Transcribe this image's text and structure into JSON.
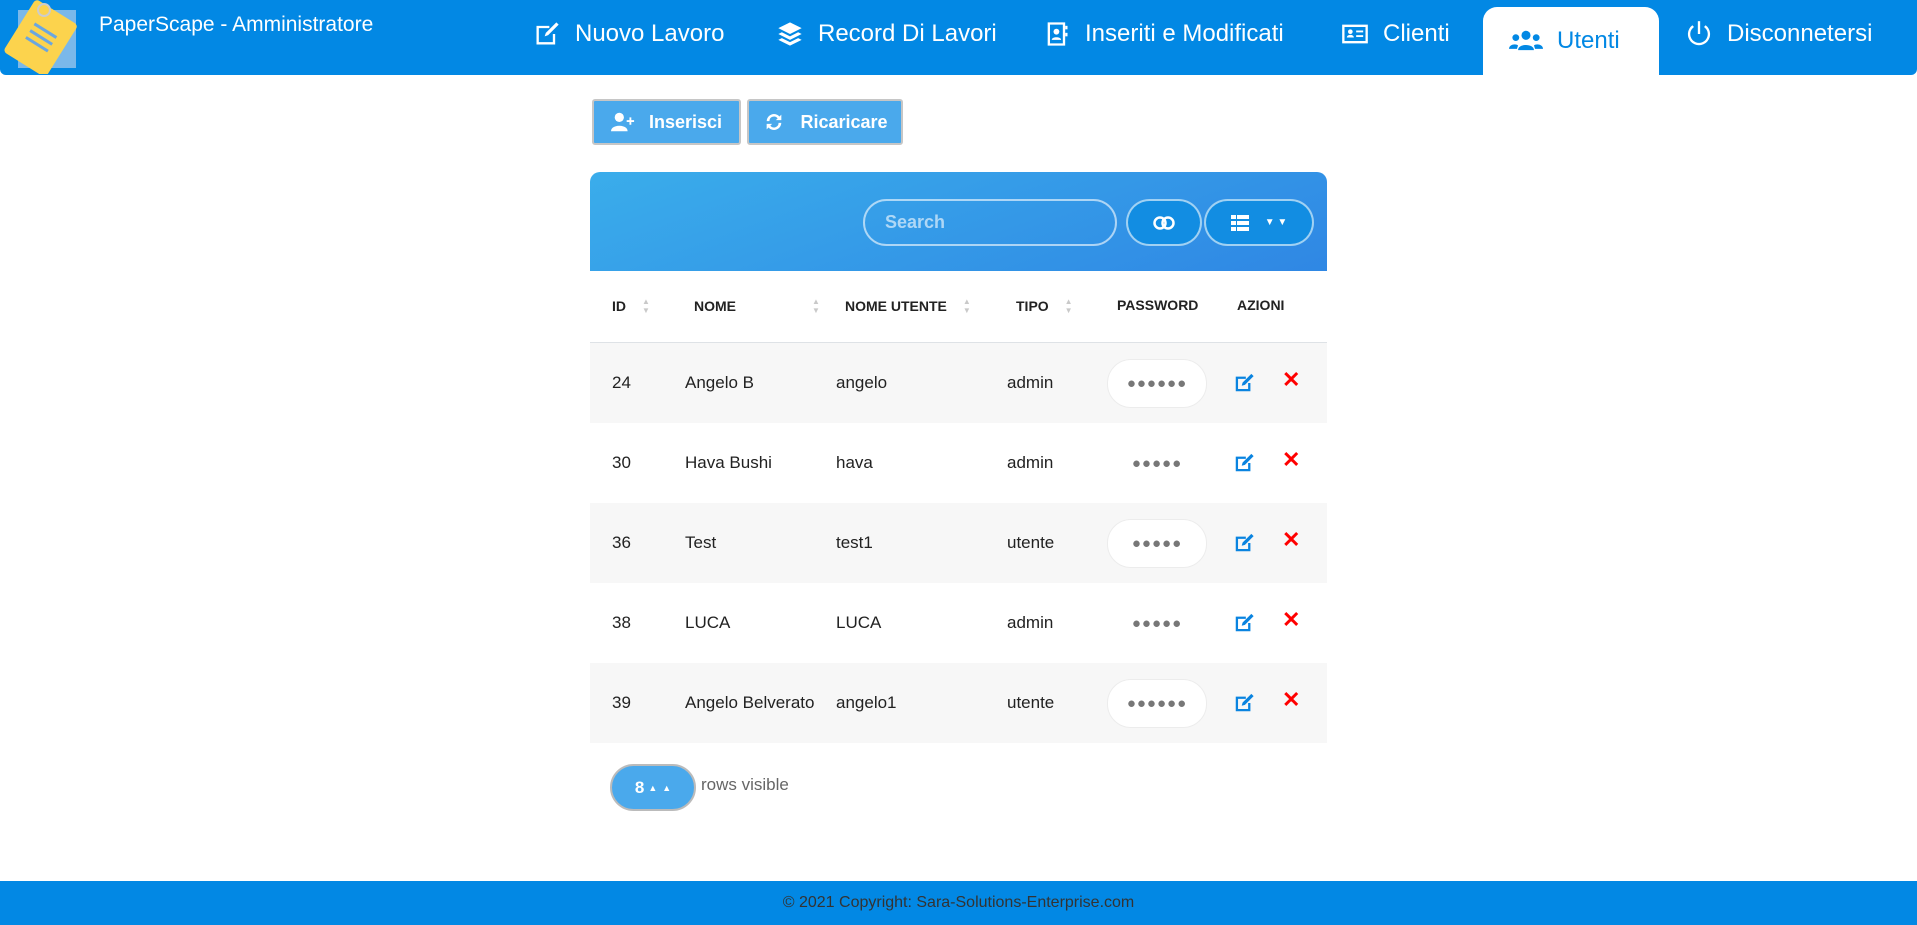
{
  "app": {
    "title": "PaperScape - Amministratore"
  },
  "nav": {
    "items": [
      {
        "label": "Nuovo Lavoro",
        "icon": "edit-icon"
      },
      {
        "label": "Record Di Lavori",
        "icon": "layers-icon"
      },
      {
        "label": "Inseriti e Modificati",
        "icon": "address-book-icon"
      },
      {
        "label": "Clienti",
        "icon": "id-card-icon"
      },
      {
        "label": "Utenti",
        "icon": "users-icon",
        "active": true
      },
      {
        "label": "Disconnetersi",
        "icon": "power-icon"
      }
    ]
  },
  "toolbar": {
    "insert_label": "Inserisci",
    "reload_label": "Ricaricare"
  },
  "table": {
    "search_placeholder": "Search",
    "columns": [
      "ID",
      "NOME",
      "NOME UTENTE",
      "TIPO",
      "PASSWORD",
      "AZIONI"
    ],
    "rows": [
      {
        "id": "24",
        "nome": "Angelo B",
        "utente": "angelo",
        "tipo": "admin",
        "password": "●●●●●●"
      },
      {
        "id": "30",
        "nome": "Hava Bushi",
        "utente": "hava",
        "tipo": "admin",
        "password": "●●●●●"
      },
      {
        "id": "36",
        "nome": "Test",
        "utente": "test1",
        "tipo": "utente",
        "password": "●●●●●"
      },
      {
        "id": "38",
        "nome": "LUCA",
        "utente": "LUCA",
        "tipo": "admin",
        "password": "●●●●●"
      },
      {
        "id": "39",
        "nome": "Angelo Belverato",
        "utente": "angelo1",
        "tipo": "utente",
        "password": "●●●●●●"
      }
    ],
    "page_size": "8",
    "rows_visible_label": "rows visible"
  },
  "footer": {
    "text": "© 2021 Copyright: Sara-Solutions-Enterprise.com"
  },
  "colors": {
    "primary": "#0288e4",
    "button": "#4aa9ec",
    "delete": "#ff0000"
  }
}
